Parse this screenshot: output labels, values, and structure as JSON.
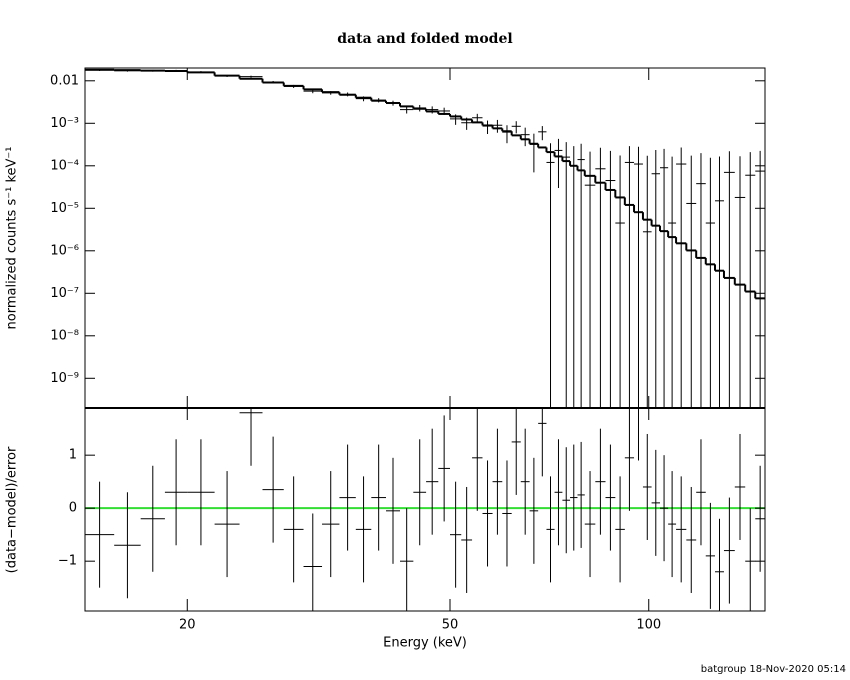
{
  "chart_data": [
    {
      "type": "spectrum",
      "title": "data and folded model",
      "ylabel": "normalized counts s⁻¹ keV⁻¹",
      "log_x": true,
      "log_y": true,
      "xlim": [
        14,
        150
      ],
      "ylim": [
        2e-10,
        0.02
      ],
      "yticks": [
        0.01,
        {
          "value": 0.001,
          "label": "10⁻³"
        },
        {
          "value": 0.0001,
          "label": "10⁻⁴"
        },
        {
          "value": 1e-05,
          "label": "10⁻⁵"
        },
        {
          "value": 1e-06,
          "label": "10⁻⁶"
        },
        {
          "value": 1e-07,
          "label": "10⁻⁷"
        },
        {
          "value": 1e-08,
          "label": "10⁻⁸"
        },
        {
          "value": 1e-09,
          "label": "10⁻⁹"
        }
      ],
      "bins": [
        14,
        15.5,
        17,
        18.5,
        20,
        22,
        24,
        26,
        28,
        30,
        32,
        34,
        36,
        38,
        40,
        42,
        44,
        46,
        48,
        50,
        52,
        54,
        56,
        58,
        60,
        62,
        64,
        66,
        68,
        70,
        72,
        74,
        76,
        78,
        80,
        83,
        86,
        89,
        92,
        95,
        98,
        101,
        104,
        107,
        110,
        114,
        118,
        122,
        126,
        130,
        135,
        140,
        145,
        150
      ],
      "model": [
        0.0182,
        0.0178,
        0.0174,
        0.017,
        0.0158,
        0.0132,
        0.0112,
        0.0091,
        0.0076,
        0.0063,
        0.0054,
        0.0047,
        0.004,
        0.0034,
        0.003,
        0.0025,
        0.0022,
        0.0019,
        0.00166,
        0.00145,
        0.00123,
        0.00105,
        0.00089,
        0.00076,
        0.00065,
        0.00052,
        0.00042,
        0.00033,
        0.00027,
        0.00021,
        0.000166,
        0.000129,
        0.0001,
        7.8e-05,
        5.8e-05,
        4e-05,
        2.7e-05,
        1.8e-05,
        1.2e-05,
        8.1e-06,
        5.4e-06,
        3.9e-06,
        2.9e-06,
        2.1e-06,
        1.5e-06,
        1.02e-06,
        6.8e-07,
        4.8e-07,
        3.4e-07,
        2.3e-07,
        1.6e-07,
        1.1e-07,
        7.6e-08
      ],
      "model_color": "#000000",
      "data": [
        0.0178,
        0.0172,
        0.0172,
        0.0173,
        0.0161,
        0.013,
        0.0125,
        0.0093,
        0.0074,
        0.0057,
        0.0052,
        0.0048,
        0.0038,
        0.0035,
        0.003,
        0.0021,
        0.0023,
        0.0021,
        0.00195,
        0.00127,
        0.00103,
        0.00135,
        0.00086,
        0.0009,
        0.00062,
        0.00085,
        0.00054,
        0.00032,
        0.00063,
        0.00012,
        0.00023,
        0.00016,
        0.0001,
        0.00014,
        3.5e-05,
        8.5e-05,
        4.5e-05,
        4.5e-06,
        0.00012,
        0.00011,
        2.8e-06,
        6.5e-05,
        9e-05,
        4.5e-06,
        0.00011,
        1.3e-05,
        3.8e-05,
        4.5e-06,
        1.5e-05,
        7e-05,
        1.8e-05,
        6e-05,
        7.5e-05
      ],
      "data_err": [
        0.0008,
        0.0008,
        0.0008,
        0.0008,
        0.0008,
        0.0007,
        0.0007,
        0.0006,
        0.0006,
        0.0006,
        0.0005,
        0.0005,
        0.0005,
        0.0004,
        0.0004,
        0.0004,
        0.0004,
        0.0004,
        0.00038,
        0.00035,
        0.00033,
        0.00032,
        0.0003,
        0.0003,
        0.00028,
        0.00027,
        0.00025,
        0.00025,
        0.00023,
        0.00022,
        0.0002,
        0.0002,
        0.00019,
        0.00019,
        0.00018,
        0.00018,
        0.00018,
        0.00017,
        0.00017,
        0.00017,
        0.00017,
        0.00017,
        0.00016,
        0.00016,
        0.00016,
        0.00016,
        0.00016,
        0.00015,
        0.00015,
        0.00015,
        0.00015,
        0.00015,
        0.00015
      ],
      "data_color": "#000000"
    },
    {
      "type": "residual",
      "ylabel": "(data−model)/error",
      "xlabel": "Energy (keV)",
      "xticks": [
        20,
        50,
        100
      ],
      "ylim": [
        -1.94,
        1.89
      ],
      "yticks": [
        1,
        0,
        {
          "value": -1,
          "label": "−1"
        }
      ],
      "values": [
        -0.5,
        -0.7,
        -0.2,
        0.3,
        0.3,
        -0.3,
        1.8,
        0.35,
        -0.4,
        -1.1,
        -0.3,
        0.2,
        -0.4,
        0.2,
        -0.05,
        -1.0,
        0.3,
        0.5,
        0.75,
        -0.5,
        -0.6,
        0.95,
        -0.1,
        0.5,
        -0.1,
        1.25,
        0.5,
        -0.05,
        1.6,
        -0.4,
        0.3,
        0.15,
        0.2,
        0.25,
        -0.3,
        0.5,
        0.2,
        -0.4,
        0.95,
        1.9,
        0.4,
        0.1,
        0.0,
        -0.3,
        -0.4,
        -0.6,
        0.3,
        -0.9,
        -1.2,
        -0.8,
        0.4,
        -1.0,
        -0.2
      ],
      "errors": [
        1,
        1,
        1,
        1,
        1,
        1,
        1,
        1,
        1,
        1,
        1,
        1,
        1,
        1,
        1,
        1,
        1,
        1,
        1,
        1,
        1,
        1,
        1,
        1,
        1,
        1,
        1,
        1,
        1,
        1,
        1,
        1,
        1,
        1,
        1,
        1,
        1,
        1,
        1,
        1,
        1,
        1,
        1,
        1,
        1,
        1,
        1,
        1,
        1,
        1,
        1,
        1,
        1
      ],
      "color": "#000000",
      "zero_line_color": "#33dd33"
    }
  ],
  "footer": "batgroup 18-Nov-2020 05:14"
}
